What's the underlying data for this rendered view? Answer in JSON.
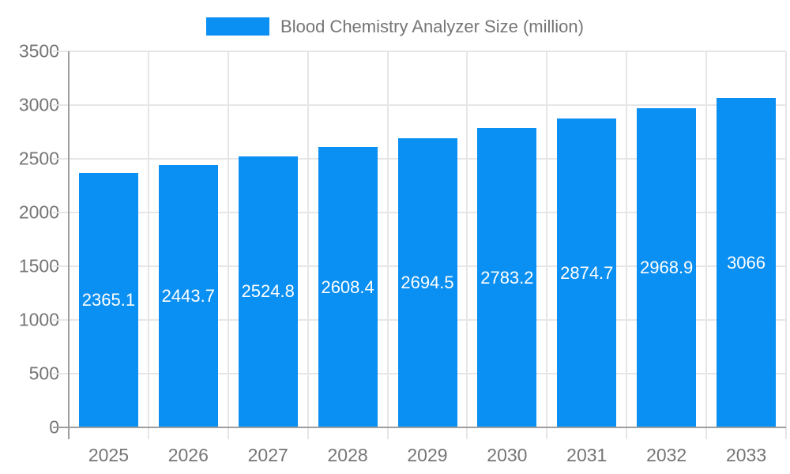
{
  "chart_data": {
    "type": "bar",
    "title": "Blood Chemistry Analyzer Size (million)",
    "categories": [
      "2025",
      "2026",
      "2027",
      "2028",
      "2029",
      "2030",
      "2031",
      "2032",
      "2033"
    ],
    "values": [
      2365.1,
      2443.7,
      2524.8,
      2608.4,
      2694.5,
      2783.2,
      2874.7,
      2968.9,
      3066
    ],
    "value_labels": [
      "2365.1",
      "2443.7",
      "2524.8",
      "2608.4",
      "2694.5",
      "2783.2",
      "2874.7",
      "2968.9",
      "3066"
    ],
    "xlabel": "",
    "ylabel": "",
    "ylim": [
      0,
      3500
    ],
    "ytick_step": 500,
    "ytick_labels": [
      "0",
      "500",
      "1000",
      "1500",
      "2000",
      "2500",
      "3000",
      "3500"
    ],
    "grid": true,
    "legend_position": "top",
    "colors": {
      "bar": "#0a8ff2",
      "bar_value_text": "#ffffff",
      "axis_text": "#757575",
      "gridline": "#e6e6e6",
      "axis_line": "#9e9e9e",
      "background": "#ffffff"
    }
  }
}
